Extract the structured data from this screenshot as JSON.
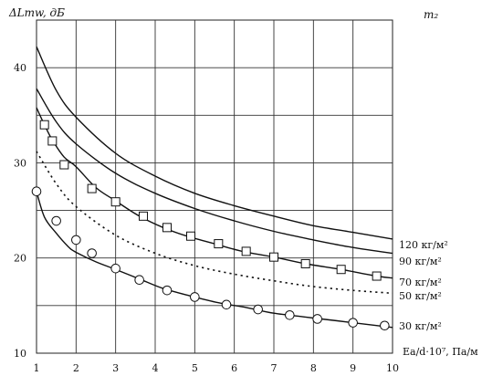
{
  "chart_data": {
    "type": "line",
    "y_axis_label": "ΔLmw, дБ",
    "x_axis_label": "Ea/d·10⁷,  Па/м",
    "legend_title": "m₂",
    "xlim": [
      1,
      10
    ],
    "ylim": [
      10,
      45
    ],
    "x_ticks": [
      1,
      2,
      3,
      4,
      5,
      6,
      7,
      8,
      9,
      10
    ],
    "y_ticks": [
      10,
      20,
      30,
      40
    ],
    "grid": true,
    "series": [
      {
        "name": "120 кг/м²",
        "style": "solid",
        "marker": "none",
        "x": [
          1,
          1.5,
          2,
          3,
          4,
          5,
          6,
          7,
          8,
          9,
          10
        ],
        "y": [
          42.2,
          37.6,
          34.8,
          31.0,
          28.6,
          26.8,
          25.5,
          24.4,
          23.4,
          22.7,
          22.0
        ]
      },
      {
        "name": "90 кг/м²",
        "style": "solid",
        "marker": "none",
        "x": [
          1,
          1.5,
          2,
          3,
          4,
          5,
          6,
          7,
          8,
          9,
          10
        ],
        "y": [
          37.8,
          34.3,
          32.0,
          28.9,
          26.8,
          25.2,
          23.9,
          22.8,
          21.9,
          21.1,
          20.5
        ]
      },
      {
        "name": "70 кг/м²",
        "style": "solid",
        "marker": "square",
        "x": [
          1,
          1.2,
          1.4,
          1.7,
          2.0,
          2.5,
          3.0,
          3.6,
          4.2,
          4.8,
          5.5,
          6.2,
          7.0,
          7.8,
          8.7,
          9.6,
          10
        ],
        "y": [
          35.8,
          34.0,
          32.4,
          30.6,
          29.6,
          27.4,
          26.0,
          24.4,
          23.2,
          22.3,
          21.5,
          20.7,
          20.1,
          19.4,
          18.8,
          18.1,
          17.9
        ],
        "markers_x": [
          1.2,
          1.4,
          1.7,
          2.4,
          3.0,
          3.7,
          4.3,
          4.9,
          5.6,
          6.3,
          7.0,
          7.8,
          8.7,
          9.6
        ],
        "markers_y": [
          34.0,
          32.3,
          29.8,
          27.3,
          25.9,
          24.4,
          23.2,
          22.3,
          21.5,
          20.7,
          20.1,
          19.4,
          18.8,
          18.1
        ]
      },
      {
        "name": "50 кг/м²",
        "style": "dotted",
        "marker": "none",
        "x": [
          1,
          1.5,
          2,
          3,
          4,
          5,
          6,
          7,
          8,
          9,
          10
        ],
        "y": [
          31.2,
          27.8,
          25.4,
          22.4,
          20.5,
          19.2,
          18.3,
          17.6,
          17.0,
          16.6,
          16.3
        ]
      },
      {
        "name": "30 кг/м²",
        "style": "solid",
        "marker": "circle",
        "x": [
          1,
          1.2,
          1.5,
          1.8,
          2.0,
          2.5,
          3.0,
          3.6,
          4.2,
          4.9,
          5.6,
          6.3,
          7.0,
          7.8,
          8.6,
          9.4,
          10
        ],
        "y": [
          27.0,
          24.3,
          22.6,
          21.2,
          20.6,
          19.6,
          18.8,
          17.8,
          16.8,
          16.0,
          15.3,
          14.8,
          14.2,
          13.8,
          13.4,
          13.0,
          12.7
        ],
        "markers_x": [
          1.0,
          1.5,
          2.0,
          2.4,
          3.0,
          3.6,
          4.3,
          5.0,
          5.8,
          6.6,
          7.4,
          8.1,
          9.0,
          9.8
        ],
        "markers_y": [
          27.0,
          23.9,
          21.9,
          20.5,
          18.9,
          17.7,
          16.6,
          15.9,
          15.1,
          14.6,
          14.0,
          13.6,
          13.2,
          12.9
        ]
      }
    ]
  }
}
